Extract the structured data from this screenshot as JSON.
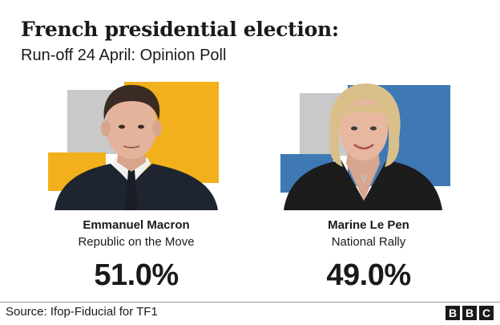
{
  "header": {
    "title": "French presidential election:",
    "subtitle": "Run-off 24 April: Opinion Poll"
  },
  "colors": {
    "macron_accent": "#F2B11C",
    "le_pen_accent": "#3F79B5",
    "grey_block": "#C9C9C9"
  },
  "chart_data": {
    "type": "bar",
    "title": "French presidential election:",
    "subtitle": "Run-off 24 April: Opinion Poll",
    "unit": "%",
    "categories": [
      "Emmanuel Macron",
      "Marine Le Pen"
    ],
    "values": [
      51.0,
      49.0
    ],
    "parties": [
      "Republic on the Move",
      "National Rally"
    ],
    "labels": [
      "51.0%",
      "49.0%"
    ]
  },
  "candidates": [
    {
      "name": "Emmanuel Macron",
      "party": "Republic on the Move",
      "percent_label": "51.0%",
      "portrait_icon": "macron-portrait-icon"
    },
    {
      "name": "Marine Le Pen",
      "party": "National Rally",
      "percent_label": "49.0%",
      "portrait_icon": "le-pen-portrait-icon"
    }
  ],
  "footer": {
    "source": "Source: Ifop-Fiducial for TF1",
    "logo_letters": [
      "B",
      "B",
      "C"
    ]
  }
}
